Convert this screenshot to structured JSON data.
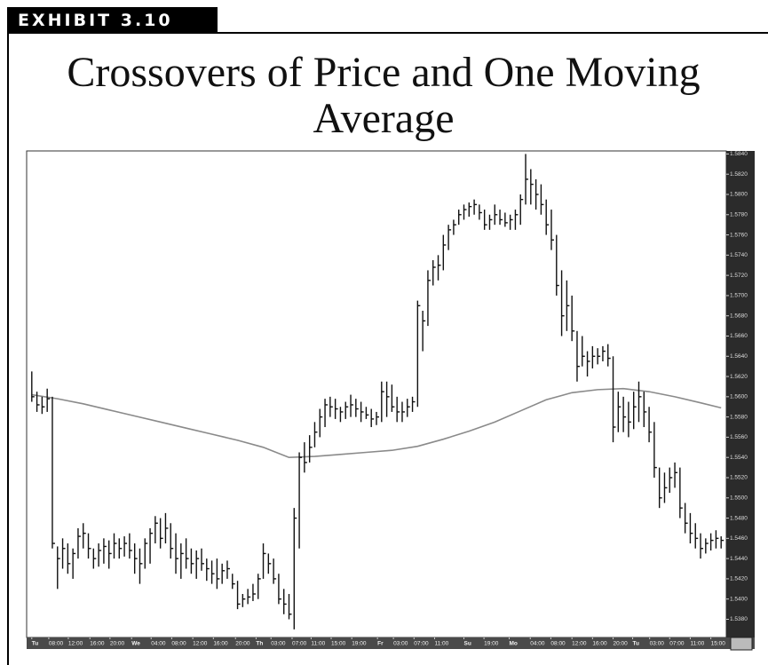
{
  "header": {
    "exhibit": "EXHIBIT 3.10"
  },
  "chart_data": {
    "type": "ohlc",
    "title": "Crossovers of Price and One Moving Average",
    "color": "#111111",
    "high": [
      1.5625,
      1.5605,
      1.56,
      1.5608,
      1.56,
      1.5452,
      1.546,
      1.5455,
      1.545,
      1.547,
      1.5475,
      1.5465,
      1.545,
      1.5455,
      1.546,
      1.5458,
      1.5465,
      1.546,
      1.5462,
      1.5465,
      1.5455,
      1.545,
      1.546,
      1.547,
      1.5482,
      1.548,
      1.5485,
      1.5475,
      1.5465,
      1.5455,
      1.546,
      1.545,
      1.5448,
      1.545,
      1.544,
      1.5438,
      1.544,
      1.5435,
      1.5438,
      1.5425,
      1.5418,
      1.5405,
      1.541,
      1.5415,
      1.5425,
      1.5455,
      1.5445,
      1.544,
      1.5425,
      1.541,
      1.5405,
      1.549,
      1.5545,
      1.5555,
      1.5562,
      1.5575,
      1.5588,
      1.5598,
      1.56,
      1.5598,
      1.559,
      1.5595,
      1.5602,
      1.5598,
      1.5595,
      1.559,
      1.5588,
      1.5585,
      1.5615,
      1.5615,
      1.5612,
      1.56,
      1.5595,
      1.5598,
      1.56,
      1.5695,
      1.5685,
      1.5725,
      1.5735,
      1.574,
      1.576,
      1.577,
      1.5775,
      1.5785,
      1.579,
      1.5792,
      1.5795,
      1.579,
      1.5785,
      1.578,
      1.579,
      1.5785,
      1.5782,
      1.578,
      1.5785,
      1.58,
      1.584,
      1.5825,
      1.5815,
      1.581,
      1.5795,
      1.5785,
      1.576,
      1.5725,
      1.5715,
      1.57,
      1.5665,
      1.566,
      1.5645,
      1.565,
      1.5648,
      1.565,
      1.5652,
      1.564,
      1.5605,
      1.56,
      1.5595,
      1.5605,
      1.5615,
      1.5605,
      1.559,
      1.5575,
      1.553,
      1.5525,
      1.553,
      1.5535,
      1.553,
      1.5495,
      1.5485,
      1.5475,
      1.5465,
      1.546,
      1.5465,
      1.5468,
      1.5462
    ],
    "low": [
      1.5595,
      1.5585,
      1.5583,
      1.5585,
      1.545,
      1.541,
      1.543,
      1.5425,
      1.542,
      1.544,
      1.545,
      1.544,
      1.543,
      1.5432,
      1.5435,
      1.543,
      1.544,
      1.544,
      1.5442,
      1.544,
      1.5425,
      1.5415,
      1.543,
      1.5435,
      1.5455,
      1.545,
      1.5455,
      1.544,
      1.5425,
      1.542,
      1.543,
      1.5425,
      1.542,
      1.5428,
      1.5418,
      1.5415,
      1.541,
      1.5415,
      1.542,
      1.541,
      1.539,
      1.5392,
      1.5395,
      1.5398,
      1.54,
      1.542,
      1.5425,
      1.5415,
      1.5395,
      1.5385,
      1.538,
      1.537,
      1.545,
      1.5525,
      1.5535,
      1.555,
      1.556,
      1.557,
      1.558,
      1.5578,
      1.5575,
      1.5578,
      1.558,
      1.558,
      1.5575,
      1.5578,
      1.557,
      1.5572,
      1.5575,
      1.558,
      1.5585,
      1.5575,
      1.5575,
      1.558,
      1.5585,
      1.559,
      1.5645,
      1.567,
      1.571,
      1.5715,
      1.5725,
      1.5745,
      1.576,
      1.577,
      1.5775,
      1.5778,
      1.578,
      1.5775,
      1.5765,
      1.5765,
      1.577,
      1.577,
      1.5768,
      1.5765,
      1.5765,
      1.577,
      1.579,
      1.579,
      1.5785,
      1.578,
      1.576,
      1.5745,
      1.57,
      1.566,
      1.5665,
      1.5655,
      1.5615,
      1.563,
      1.562,
      1.5628,
      1.5632,
      1.5635,
      1.563,
      1.5555,
      1.5565,
      1.5565,
      1.556,
      1.5568,
      1.5575,
      1.557,
      1.5555,
      1.552,
      1.549,
      1.5495,
      1.5505,
      1.551,
      1.548,
      1.5465,
      1.5455,
      1.545,
      1.544,
      1.5445,
      1.5448,
      1.545,
      1.545
    ],
    "close": [
      1.56,
      1.5592,
      1.559,
      1.5598,
      1.5455,
      1.544,
      1.545,
      1.5435,
      1.5445,
      1.5462,
      1.5465,
      1.545,
      1.544,
      1.5448,
      1.5452,
      1.5445,
      1.5455,
      1.545,
      1.5455,
      1.5448,
      1.544,
      1.5435,
      1.5455,
      1.5465,
      1.5475,
      1.546,
      1.547,
      1.545,
      1.544,
      1.5445,
      1.544,
      1.5435,
      1.544,
      1.5435,
      1.543,
      1.5425,
      1.542,
      1.5428,
      1.543,
      1.5415,
      1.5395,
      1.54,
      1.5402,
      1.5405,
      1.542,
      1.5445,
      1.5435,
      1.542,
      1.54,
      1.5395,
      1.5385,
      1.548,
      1.554,
      1.5535,
      1.555,
      1.5565,
      1.558,
      1.5592,
      1.559,
      1.5588,
      1.5585,
      1.559,
      1.5592,
      1.5588,
      1.5585,
      1.5582,
      1.5578,
      1.558,
      1.5605,
      1.56,
      1.559,
      1.5585,
      1.5585,
      1.559,
      1.5595,
      1.569,
      1.5675,
      1.5715,
      1.5728,
      1.573,
      1.575,
      1.5765,
      1.577,
      1.578,
      1.5785,
      1.5788,
      1.579,
      1.5782,
      1.577,
      1.5775,
      1.578,
      1.5775,
      1.5772,
      1.5775,
      1.578,
      1.5795,
      1.5815,
      1.581,
      1.58,
      1.579,
      1.577,
      1.5755,
      1.571,
      1.568,
      1.569,
      1.5665,
      1.563,
      1.564,
      1.5635,
      1.564,
      1.564,
      1.5645,
      1.5638,
      1.557,
      1.559,
      1.558,
      1.5575,
      1.559,
      1.56,
      1.5585,
      1.5565,
      1.553,
      1.55,
      1.551,
      1.552,
      1.5525,
      1.549,
      1.5475,
      1.5465,
      1.546,
      1.545,
      1.5455,
      1.5458,
      1.546,
      1.5458
    ],
    "moving_average": {
      "color": "#8a8a8a",
      "x": [
        0,
        5,
        10,
        15,
        20,
        25,
        30,
        35,
        40,
        45,
        50,
        55,
        60,
        65,
        70,
        75,
        80,
        85,
        90,
        95,
        100,
        105,
        110,
        115,
        120,
        125,
        130,
        134
      ],
      "values": [
        1.5602,
        1.5598,
        1.5593,
        1.5587,
        1.5581,
        1.5575,
        1.5569,
        1.5563,
        1.5557,
        1.555,
        1.554,
        1.5541,
        1.5543,
        1.5545,
        1.5547,
        1.5551,
        1.5558,
        1.5566,
        1.5575,
        1.5586,
        1.5597,
        1.5604,
        1.5607,
        1.5608,
        1.5605,
        1.56,
        1.5594,
        1.5589
      ]
    },
    "xlim": [
      -1,
      135
    ],
    "xticks": [
      {
        "value": 0,
        "label": "Tu"
      },
      {
        "value": 3.3,
        "label": "08:00"
      },
      {
        "value": 7.1,
        "label": "12:00"
      },
      {
        "value": 11.3,
        "label": "16:00"
      },
      {
        "value": 15.2,
        "label": "20:00"
      },
      {
        "value": 19.4,
        "label": "We"
      },
      {
        "value": 23.2,
        "label": "04:00"
      },
      {
        "value": 27.2,
        "label": "08:00"
      },
      {
        "value": 31.3,
        "label": "12:00"
      },
      {
        "value": 35.3,
        "label": "16:00"
      },
      {
        "value": 39.6,
        "label": "20:00"
      },
      {
        "value": 43.6,
        "label": "Th"
      },
      {
        "value": 46.5,
        "label": "03:00"
      },
      {
        "value": 50.6,
        "label": "07:00"
      },
      {
        "value": 54.3,
        "label": "11:00"
      },
      {
        "value": 58.2,
        "label": "15:00"
      },
      {
        "value": 62.2,
        "label": "19:00"
      },
      {
        "value": 67.2,
        "label": "Fr"
      },
      {
        "value": 70.3,
        "label": "03:00"
      },
      {
        "value": 74.3,
        "label": "07:00"
      },
      {
        "value": 78.3,
        "label": "11:00"
      },
      {
        "value": 84.0,
        "label": "Su"
      },
      {
        "value": 87.9,
        "label": "19:00"
      },
      {
        "value": 92.8,
        "label": "Mo"
      },
      {
        "value": 96.9,
        "label": "04:00"
      },
      {
        "value": 100.9,
        "label": "08:00"
      },
      {
        "value": 105.0,
        "label": "12:00"
      },
      {
        "value": 109.0,
        "label": "16:00"
      },
      {
        "value": 113.0,
        "label": "20:00"
      },
      {
        "value": 116.8,
        "label": "Tu"
      },
      {
        "value": 120.1,
        "label": "03:00"
      },
      {
        "value": 124.0,
        "label": "07:00"
      },
      {
        "value": 128.0,
        "label": "11:00"
      },
      {
        "value": 132.0,
        "label": "15:00"
      }
    ],
    "ylim": [
      1.5362,
      1.5843
    ],
    "yticks": [
      {
        "value": 1.538,
        "label": "1.5380"
      },
      {
        "value": 1.54,
        "label": "1.5400"
      },
      {
        "value": 1.542,
        "label": "1.5420"
      },
      {
        "value": 1.544,
        "label": "1.5440"
      },
      {
        "value": 1.546,
        "label": "1.5460"
      },
      {
        "value": 1.548,
        "label": "1.5480"
      },
      {
        "value": 1.55,
        "label": "1.5500"
      },
      {
        "value": 1.552,
        "label": "1.5520"
      },
      {
        "value": 1.554,
        "label": "1.5540"
      },
      {
        "value": 1.556,
        "label": "1.5560"
      },
      {
        "value": 1.558,
        "label": "1.5580"
      },
      {
        "value": 1.56,
        "label": "1.5600"
      },
      {
        "value": 1.562,
        "label": "1.5620"
      },
      {
        "value": 1.564,
        "label": "1.5640"
      },
      {
        "value": 1.566,
        "label": "1.5660"
      },
      {
        "value": 1.568,
        "label": "1.5680"
      },
      {
        "value": 1.57,
        "label": "1.5700"
      },
      {
        "value": 1.572,
        "label": "1.5720"
      },
      {
        "value": 1.574,
        "label": "1.5740"
      },
      {
        "value": 1.576,
        "label": "1.5760"
      },
      {
        "value": 1.578,
        "label": "1.5780"
      },
      {
        "value": 1.58,
        "label": "1.5800"
      },
      {
        "value": 1.582,
        "label": "1.5820"
      },
      {
        "value": 1.584,
        "label": "1.5840"
      }
    ],
    "grid": false
  }
}
